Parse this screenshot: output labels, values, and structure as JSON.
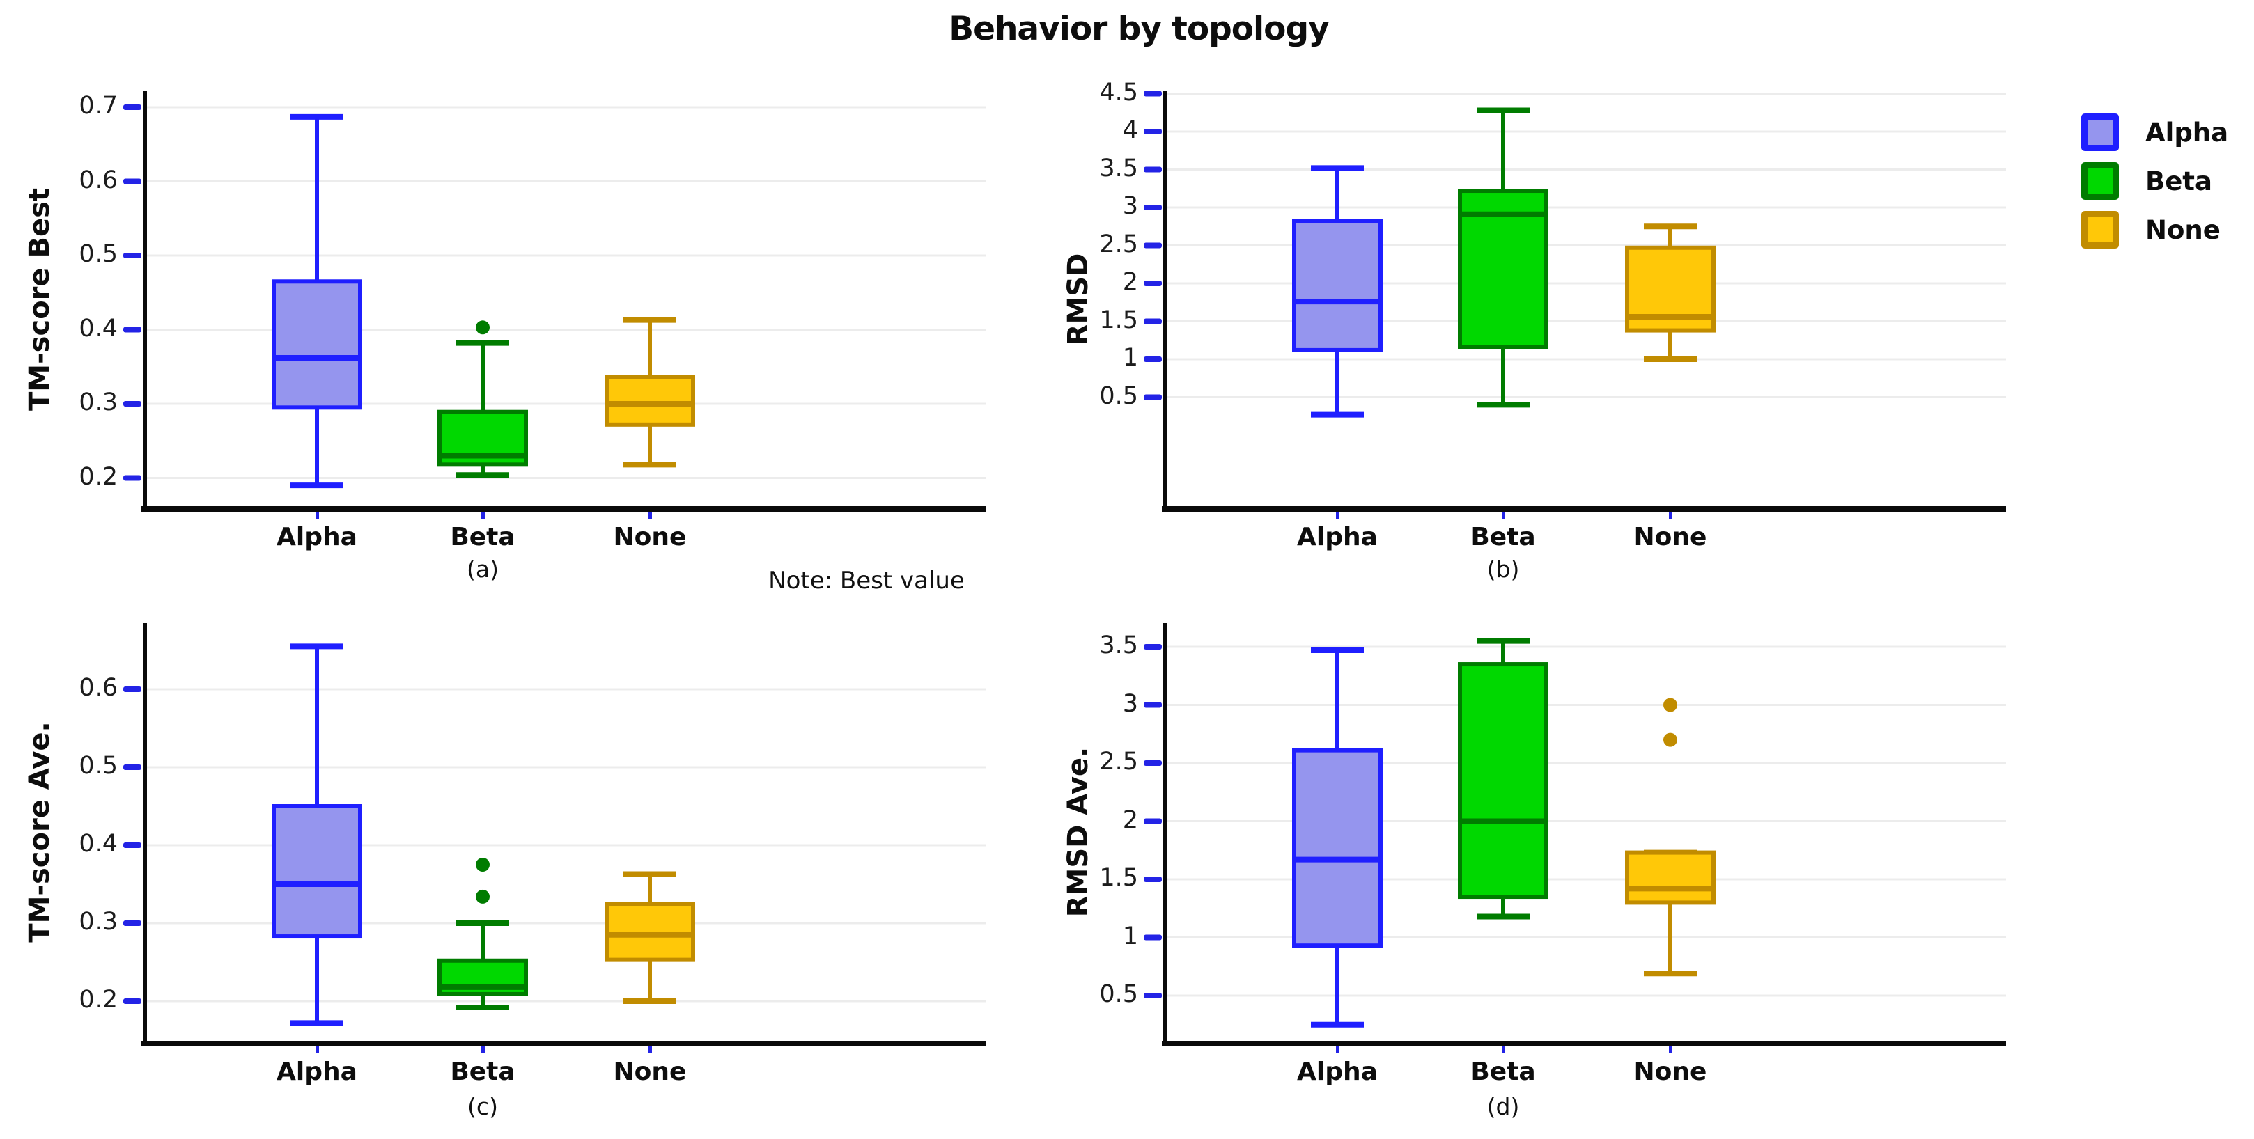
{
  "title": "Behavior by topology",
  "note": "Note: Best value",
  "legend": {
    "position": "right",
    "items": [
      {
        "label": "Alpha",
        "fill": "#9595ee",
        "stroke": "#1f1fff"
      },
      {
        "label": "Beta",
        "fill": "#00d800",
        "stroke": "#007c00"
      },
      {
        "label": "None",
        "fill": "#ffc808",
        "stroke": "#c18c00"
      }
    ]
  },
  "colors": {
    "tick": "#2323e6",
    "grid": "#ececec",
    "axis": "#0a0a0a"
  },
  "chart_data": [
    {
      "type": "boxplot",
      "panel": "(a)",
      "ylabel": "TM-score Best",
      "categories": [
        "Alpha",
        "Beta",
        "None"
      ],
      "yticks": [
        0.7,
        0.6,
        0.5,
        0.4,
        0.3,
        0.2
      ],
      "ylim": [
        0.15,
        0.72
      ],
      "grid": "horizontal",
      "series": [
        {
          "name": "Alpha",
          "whislo": 0.19,
          "q1": 0.295,
          "med": 0.362,
          "q3": 0.465,
          "whishi": 0.687,
          "outliers": []
        },
        {
          "name": "Beta",
          "whislo": 0.204,
          "q1": 0.218,
          "med": 0.23,
          "q3": 0.289,
          "whishi": 0.382,
          "outliers": [
            0.403
          ]
        },
        {
          "name": "None",
          "whislo": 0.218,
          "q1": 0.272,
          "med": 0.3,
          "q3": 0.336,
          "whishi": 0.413,
          "outliers": []
        }
      ]
    },
    {
      "type": "boxplot",
      "panel": "(b)",
      "ylabel": "RMSD",
      "categories": [
        "Alpha",
        "Beta",
        "None"
      ],
      "yticks": [
        4.5,
        4,
        3.5,
        3,
        2.5,
        2,
        1.5,
        1,
        0.5
      ],
      "ylim": [
        0.0,
        4.55
      ],
      "grid": "horizontal",
      "series": [
        {
          "name": "Alpha",
          "whislo": 0.27,
          "q1": 1.12,
          "med": 1.76,
          "q3": 2.82,
          "whishi": 3.52,
          "outliers": []
        },
        {
          "name": "Beta",
          "whislo": 0.4,
          "q1": 1.16,
          "med": 2.91,
          "q3": 3.22,
          "whishi": 4.28,
          "outliers": []
        },
        {
          "name": "None",
          "whislo": 1.0,
          "q1": 1.38,
          "med": 1.56,
          "q3": 2.47,
          "whishi": 2.75,
          "outliers": []
        }
      ]
    },
    {
      "type": "boxplot",
      "panel": "(c)",
      "ylabel": "TM-score Ave.",
      "categories": [
        "Alpha",
        "Beta",
        "None"
      ],
      "yticks": [
        0.6,
        0.5,
        0.4,
        0.3,
        0.2
      ],
      "ylim": [
        0.14,
        0.69
      ],
      "grid": "horizontal",
      "series": [
        {
          "name": "Alpha",
          "whislo": 0.172,
          "q1": 0.283,
          "med": 0.35,
          "q3": 0.45,
          "whishi": 0.655,
          "outliers": []
        },
        {
          "name": "Beta",
          "whislo": 0.192,
          "q1": 0.209,
          "med": 0.218,
          "q3": 0.252,
          "whishi": 0.3,
          "outliers": [
            0.334,
            0.375
          ]
        },
        {
          "name": "None",
          "whislo": 0.2,
          "q1": 0.253,
          "med": 0.285,
          "q3": 0.325,
          "whishi": 0.363,
          "outliers": []
        }
      ]
    },
    {
      "type": "boxplot",
      "panel": "(d)",
      "ylabel": "RMSD Ave.",
      "categories": [
        "Alpha",
        "Beta",
        "None"
      ],
      "yticks": [
        3.5,
        3,
        2.5,
        2,
        1.5,
        1,
        0.5
      ],
      "ylim": [
        0.06,
        3.7
      ],
      "grid": "horizontal",
      "series": [
        {
          "name": "Alpha",
          "whislo": 0.25,
          "q1": 0.93,
          "med": 1.67,
          "q3": 2.61,
          "whishi": 3.47,
          "outliers": []
        },
        {
          "name": "Beta",
          "whislo": 1.18,
          "q1": 1.35,
          "med": 2.0,
          "q3": 3.35,
          "whishi": 3.55,
          "outliers": []
        },
        {
          "name": "None",
          "whislo": 0.69,
          "q1": 1.3,
          "med": 1.42,
          "q3": 1.73,
          "whishi": 1.73,
          "outliers": [
            2.7,
            3.0
          ]
        }
      ]
    }
  ]
}
